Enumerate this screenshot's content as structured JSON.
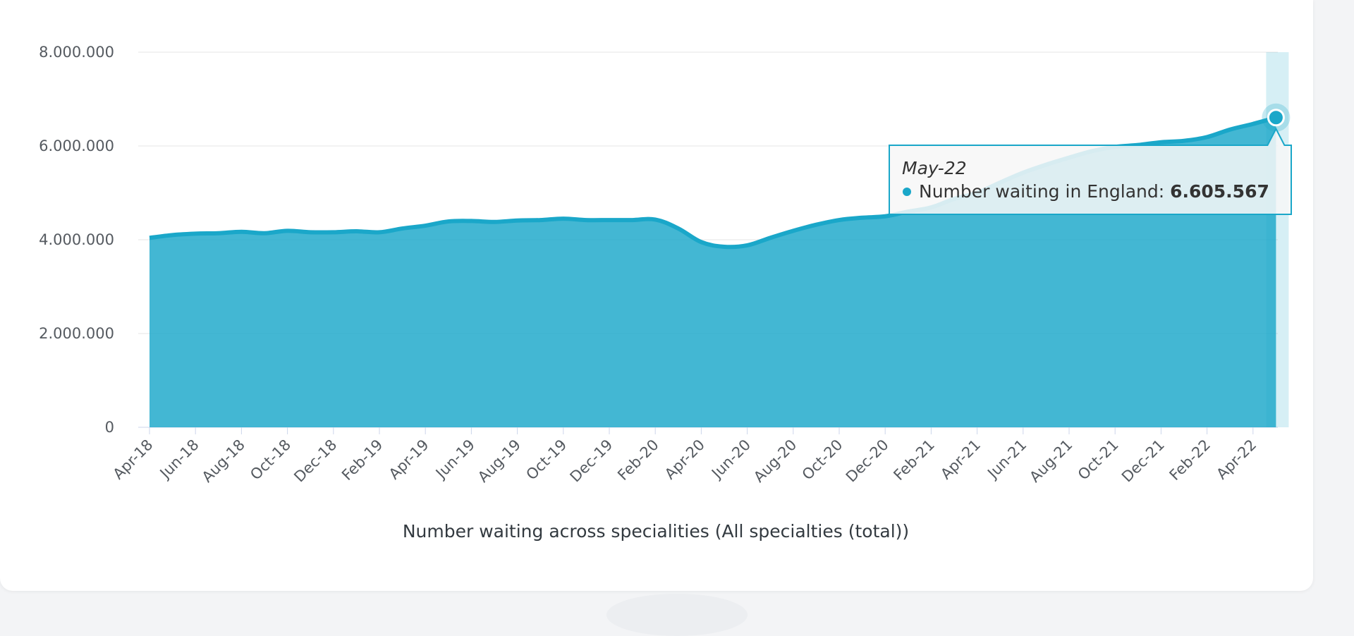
{
  "chart_data": {
    "type": "area",
    "xlabel": "Number waiting across specialities (All specialties (total))",
    "ylabel": "",
    "ylim": [
      0,
      8000000
    ],
    "y_ticks": [
      "0",
      "2.000.000",
      "4.000.000",
      "6.000.000",
      "8.000.000"
    ],
    "grid": true,
    "legend": "none",
    "x_tick_labels": [
      "Apr-18",
      "Jun-18",
      "Aug-18",
      "Oct-18",
      "Dec-18",
      "Feb-19",
      "Apr-19",
      "Jun-19",
      "Aug-19",
      "Oct-19",
      "Dec-19",
      "Feb-20",
      "Apr-20",
      "Jun-20",
      "Aug-20",
      "Oct-20",
      "Dec-20",
      "Feb-21",
      "Apr-21",
      "Jun-21",
      "Aug-21",
      "Oct-21",
      "Dec-21",
      "Feb-22",
      "Apr-22"
    ],
    "x": [
      "Apr-18",
      "May-18",
      "Jun-18",
      "Jul-18",
      "Aug-18",
      "Sep-18",
      "Oct-18",
      "Nov-18",
      "Dec-18",
      "Jan-19",
      "Feb-19",
      "Mar-19",
      "Apr-19",
      "May-19",
      "Jun-19",
      "Jul-19",
      "Aug-19",
      "Sep-19",
      "Oct-19",
      "Nov-19",
      "Dec-19",
      "Jan-20",
      "Feb-20",
      "Mar-20",
      "Apr-20",
      "May-20",
      "Jun-20",
      "Jul-20",
      "Aug-20",
      "Sep-20",
      "Oct-20",
      "Nov-20",
      "Dec-20",
      "Jan-21",
      "Feb-21",
      "Mar-21",
      "Apr-21",
      "May-21",
      "Jun-21",
      "Jul-21",
      "Aug-21",
      "Sep-21",
      "Oct-21",
      "Nov-21",
      "Dec-21",
      "Jan-22",
      "Feb-22",
      "Mar-22",
      "Apr-22",
      "May-22"
    ],
    "series": [
      {
        "name": "Number waiting in England",
        "color": "#1aa7c9",
        "values": [
          4040000,
          4100000,
          4130000,
          4140000,
          4170000,
          4140000,
          4190000,
          4160000,
          4160000,
          4180000,
          4160000,
          4240000,
          4300000,
          4390000,
          4400000,
          4380000,
          4410000,
          4420000,
          4450000,
          4420000,
          4420000,
          4420000,
          4430000,
          4240000,
          3950000,
          3850000,
          3880000,
          4040000,
          4190000,
          4320000,
          4420000,
          4470000,
          4500000,
          4600000,
          4690000,
          4870000,
          5000000,
          5220000,
          5430000,
          5600000,
          5750000,
          5890000,
          5980000,
          6020000,
          6080000,
          6110000,
          6190000,
          6350000,
          6470000,
          6605567
        ]
      }
    ]
  },
  "tooltip": {
    "date": "May-22",
    "series_label": "Number waiting in England: ",
    "value_text": "6.605.567"
  }
}
